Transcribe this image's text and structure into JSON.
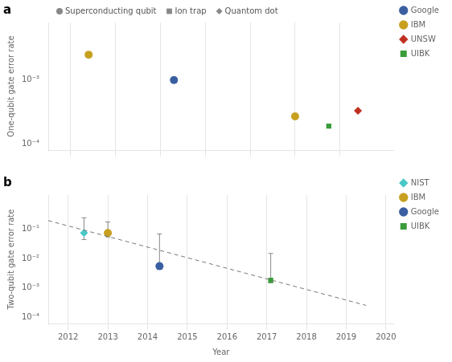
{
  "chart_data": [
    {
      "type": "scatter",
      "title": "a",
      "ylabel": "One-qubit gate error rate",
      "log": "y",
      "xlim": [
        2011.5,
        2019.2
      ],
      "ylim": [
        8e-05,
        0.008
      ],
      "xticks": [
        2012,
        2013,
        2014,
        2015,
        2016,
        2017,
        2018
      ],
      "yticks": [
        {
          "value": 0.0001,
          "label": "10⁻⁴"
        },
        {
          "value": 0.001,
          "label": "10⁻³"
        }
      ],
      "grid": "x",
      "tick_labels": "y",
      "legend": "right",
      "series": [
        {
          "name": "Google",
          "color": "#3a5fa0",
          "marker": "circle",
          "x": [
            2014.3
          ],
          "values": [
            0.001
          ]
        },
        {
          "name": "IBM",
          "color": "#c8a020",
          "marker": "circle",
          "x": [
            2012.4,
            2017.0
          ],
          "values": [
            0.0025,
            0.00027
          ]
        },
        {
          "name": "UNSW",
          "color": "#c03020",
          "marker": "diamond",
          "x": [
            2018.4
          ],
          "values": [
            0.00033
          ]
        },
        {
          "name": "UIBK",
          "color": "#3a9c3a",
          "marker": "square",
          "x": [
            2017.75
          ],
          "values": [
            0.00019
          ]
        }
      ],
      "marker_key": [
        {
          "label": "Superconducting qubit",
          "color": "#888888",
          "marker": "circle"
        },
        {
          "label": "Ion trap",
          "color": "#888888",
          "marker": "square"
        },
        {
          "label": "Quantom dot",
          "color": "#888888",
          "marker": "diamond"
        }
      ]
    },
    {
      "type": "scatter",
      "title": "b",
      "ylabel": "Two-qubit gate error rate",
      "xlabel": "Year",
      "log": "y",
      "xlim": [
        2011.5,
        2020.2
      ],
      "ylim": [
        6e-05,
        1.5
      ],
      "xticks": [
        2012,
        2013,
        2014,
        2015,
        2016,
        2017,
        2018,
        2019,
        2020
      ],
      "yticks": [
        {
          "value": 0.0001,
          "label": "10⁻⁴"
        },
        {
          "value": 0.001,
          "label": "10⁻³"
        },
        {
          "value": 0.01,
          "label": "10⁻²"
        },
        {
          "value": 0.1,
          "label": "10⁻¹"
        }
      ],
      "grid": "x",
      "legend": "right",
      "series": [
        {
          "name": "NIST",
          "color": "#4ac8c8",
          "marker": "diamond",
          "x": [
            2012.4
          ],
          "values": [
            0.075
          ],
          "error_low": [
            0.045
          ],
          "error_high": [
            0.25
          ]
        },
        {
          "name": "IBM",
          "color": "#c8a020",
          "marker": "circle",
          "x": [
            2013.0
          ],
          "values": [
            0.075
          ],
          "error_low": [
            0.055
          ],
          "error_high": [
            0.18
          ]
        },
        {
          "name": "Google",
          "color": "#3a5fa0",
          "marker": "circle",
          "x": [
            2014.3
          ],
          "values": [
            0.0055
          ],
          "error_low": [
            0.005
          ],
          "error_high": [
            0.07
          ]
        },
        {
          "name": "UIBK",
          "color": "#3a9c3a",
          "marker": "square",
          "x": [
            2017.1
          ],
          "values": [
            0.0018
          ],
          "error_low": [
            0.0015
          ],
          "error_high": [
            0.015
          ]
        }
      ],
      "trend": {
        "x": [
          2011.5,
          2019.5
        ],
        "values": [
          0.2,
          0.00025
        ],
        "color": "#777777",
        "line_style": "dashed"
      }
    }
  ]
}
